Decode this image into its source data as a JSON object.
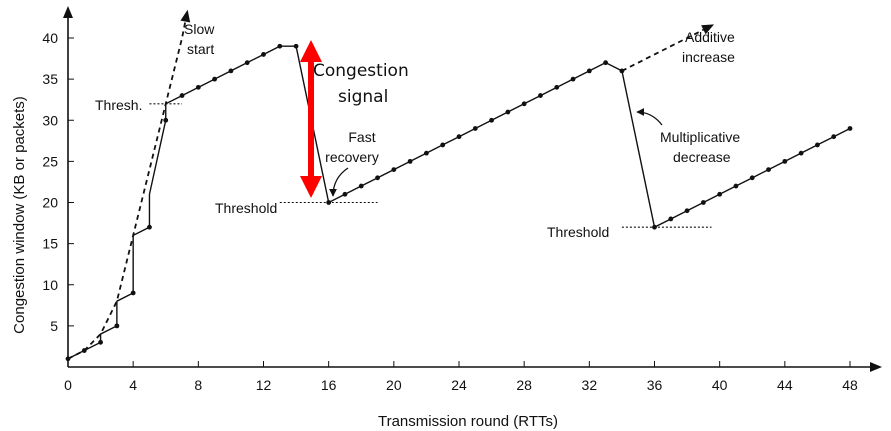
{
  "chart_data": {
    "type": "line",
    "xlabel": "Transmission round (RTTs)",
    "ylabel": "Congestion window  (KB or packets)",
    "xlim": [
      0,
      50
    ],
    "ylim": [
      0,
      43
    ],
    "xticks": [
      0,
      4,
      8,
      12,
      16,
      20,
      24,
      28,
      32,
      36,
      40,
      44,
      48
    ],
    "yticks": [
      5,
      10,
      15,
      20,
      25,
      30,
      35,
      40
    ],
    "grid": false,
    "series": [
      {
        "style": "solid-with-markers",
        "points": [
          [
            0,
            1
          ],
          [
            1,
            2
          ],
          [
            2,
            3
          ],
          [
            2,
            4
          ],
          [
            3,
            5
          ],
          [
            3,
            8
          ],
          [
            4,
            9
          ],
          [
            4,
            16
          ],
          [
            5,
            17
          ],
          [
            5,
            21
          ],
          [
            6,
            30
          ],
          [
            6,
            32
          ],
          [
            7,
            33
          ],
          [
            8,
            34
          ],
          [
            9,
            35
          ],
          [
            10,
            36
          ],
          [
            11,
            37
          ],
          [
            12,
            38
          ],
          [
            13,
            39
          ],
          [
            14,
            39
          ],
          [
            16,
            20
          ],
          [
            17,
            21
          ],
          [
            18,
            22
          ],
          [
            19,
            23
          ],
          [
            20,
            24
          ],
          [
            21,
            25
          ],
          [
            22,
            26
          ],
          [
            23,
            27
          ],
          [
            24,
            28
          ],
          [
            25,
            29
          ],
          [
            26,
            30
          ],
          [
            27,
            31
          ],
          [
            28,
            32
          ],
          [
            29,
            33
          ],
          [
            30,
            34
          ],
          [
            31,
            35
          ],
          [
            32,
            36
          ],
          [
            33,
            37
          ],
          [
            34,
            36
          ],
          [
            36,
            17
          ],
          [
            37,
            18
          ],
          [
            38,
            19
          ],
          [
            39,
            20
          ],
          [
            40,
            21
          ],
          [
            41,
            22
          ],
          [
            42,
            23
          ],
          [
            43,
            24
          ],
          [
            44,
            25
          ],
          [
            45,
            26
          ],
          [
            46,
            27
          ],
          [
            47,
            28
          ],
          [
            48,
            29
          ]
        ]
      },
      {
        "style": "dashed",
        "points": [
          [
            0,
            1
          ],
          [
            1,
            2
          ],
          [
            2,
            4
          ],
          [
            3,
            8
          ],
          [
            4,
            16
          ],
          [
            5,
            24
          ],
          [
            6,
            32
          ],
          [
            7,
            40
          ],
          [
            7.2,
            42
          ]
        ]
      },
      {
        "style": "dashed",
        "points": [
          [
            34,
            36
          ],
          [
            35,
            37
          ],
          [
            36,
            38
          ],
          [
            37,
            39
          ],
          [
            38,
            40
          ],
          [
            39,
            41
          ]
        ]
      }
    ],
    "thresholds": [
      {
        "label": "Thresh.",
        "y": 32,
        "x_from": 5,
        "x_to": 7
      },
      {
        "label": "Threshold",
        "y": 20,
        "x_from": 13,
        "x_to": 19
      },
      {
        "label": "Threshold",
        "y": 17,
        "x_from": 34,
        "x_to": 39.5
      }
    ],
    "annotations": [
      {
        "text_lines": [
          "Slow",
          "start"
        ]
      },
      {
        "text_lines": [
          "Additive",
          "increase"
        ]
      },
      {
        "text_lines": [
          "Fast",
          "recovery"
        ]
      },
      {
        "text_lines": [
          "Multiplicative",
          "decrease"
        ]
      },
      {
        "text_lines": [
          "Congestion",
          "signal"
        ],
        "color": "#ff0000"
      }
    ]
  }
}
